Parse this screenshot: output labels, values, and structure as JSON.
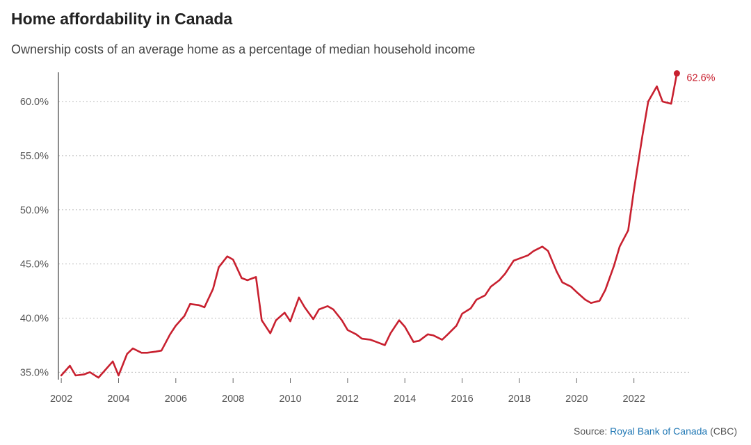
{
  "title": "Home affordability in Canada",
  "subtitle": "Ownership costs of an average home as a percentage of median household income",
  "source": {
    "prefix": "Source:",
    "org": "Royal Bank of Canada",
    "suffix": "(CBC)"
  },
  "colors": {
    "line": "#c8202f",
    "grid": "#bbbbbb",
    "axis": "#666666",
    "link": "#1f77b4"
  },
  "chart_data": {
    "type": "line",
    "title": "Home affordability in Canada",
    "subtitle": "Ownership costs of an average home as a percentage of median household income",
    "xlabel": "",
    "ylabel": "",
    "xlim": [
      2001.9,
      2024.0
    ],
    "ylim": [
      34.7,
      62.7
    ],
    "grid": "horizontal dotted",
    "x_ticks": [
      2002,
      2004,
      2006,
      2008,
      2010,
      2012,
      2014,
      2016,
      2018,
      2020,
      2022
    ],
    "y_ticks": [
      {
        "value": 35,
        "label": "35.0%"
      },
      {
        "value": 40,
        "label": "40.0%"
      },
      {
        "value": 45,
        "label": "45.0%"
      },
      {
        "value": 50,
        "label": "50.0%"
      },
      {
        "value": 55,
        "label": "55.0%"
      },
      {
        "value": 60,
        "label": "60.0%"
      }
    ],
    "end_label": "62.6%",
    "series": [
      {
        "x": [
          2002.0,
          2002.3,
          2002.5,
          2002.8,
          2003.0,
          2003.3,
          2003.5,
          2003.8,
          2004.0,
          2004.3,
          2004.5,
          2004.8,
          2005.0,
          2005.3,
          2005.5,
          2005.8,
          2006.0,
          2006.3,
          2006.5,
          2006.8,
          2007.0,
          2007.3,
          2007.5,
          2007.8,
          2008.0,
          2008.3,
          2008.5,
          2008.8,
          2009.0,
          2009.3,
          2009.5,
          2009.8,
          2010.0,
          2010.3,
          2010.5,
          2010.8,
          2011.0,
          2011.3,
          2011.5,
          2011.8,
          2012.0,
          2012.3,
          2012.5,
          2012.8,
          2013.0,
          2013.3,
          2013.5,
          2013.8,
          2014.0,
          2014.3,
          2014.5,
          2014.8,
          2015.0,
          2015.3,
          2015.5,
          2015.8,
          2016.0,
          2016.3,
          2016.5,
          2016.8,
          2017.0,
          2017.3,
          2017.5,
          2017.8,
          2018.0,
          2018.3,
          2018.5,
          2018.8,
          2019.0,
          2019.3,
          2019.5,
          2019.8,
          2020.0,
          2020.3,
          2020.5,
          2020.8,
          2021.0,
          2021.3,
          2021.5,
          2021.8,
          2022.0,
          2022.3,
          2022.5,
          2022.8,
          2023.0,
          2023.3,
          2023.5
        ],
        "values": [
          34.7,
          35.6,
          34.7,
          34.8,
          35.0,
          34.5,
          35.1,
          36.0,
          34.7,
          36.7,
          37.2,
          36.8,
          36.8,
          36.9,
          37.0,
          38.5,
          39.3,
          40.2,
          41.3,
          41.2,
          41.0,
          42.7,
          44.7,
          45.7,
          45.4,
          43.7,
          43.5,
          43.8,
          39.8,
          38.6,
          39.8,
          40.5,
          39.7,
          41.9,
          41.0,
          39.9,
          40.8,
          41.1,
          40.8,
          39.8,
          38.9,
          38.5,
          38.1,
          38.0,
          37.8,
          37.5,
          38.6,
          39.8,
          39.2,
          37.8,
          37.9,
          38.5,
          38.4,
          38.0,
          38.5,
          39.3,
          40.4,
          40.9,
          41.7,
          42.1,
          42.9,
          43.5,
          44.1,
          45.3,
          45.5,
          45.8,
          46.2,
          46.6,
          46.2,
          44.3,
          43.3,
          42.9,
          42.4,
          41.7,
          41.4,
          41.6,
          42.6,
          44.8,
          46.6,
          48.1,
          51.8,
          56.9,
          60.0,
          61.4,
          60.0,
          59.8,
          62.6
        ]
      }
    ]
  }
}
